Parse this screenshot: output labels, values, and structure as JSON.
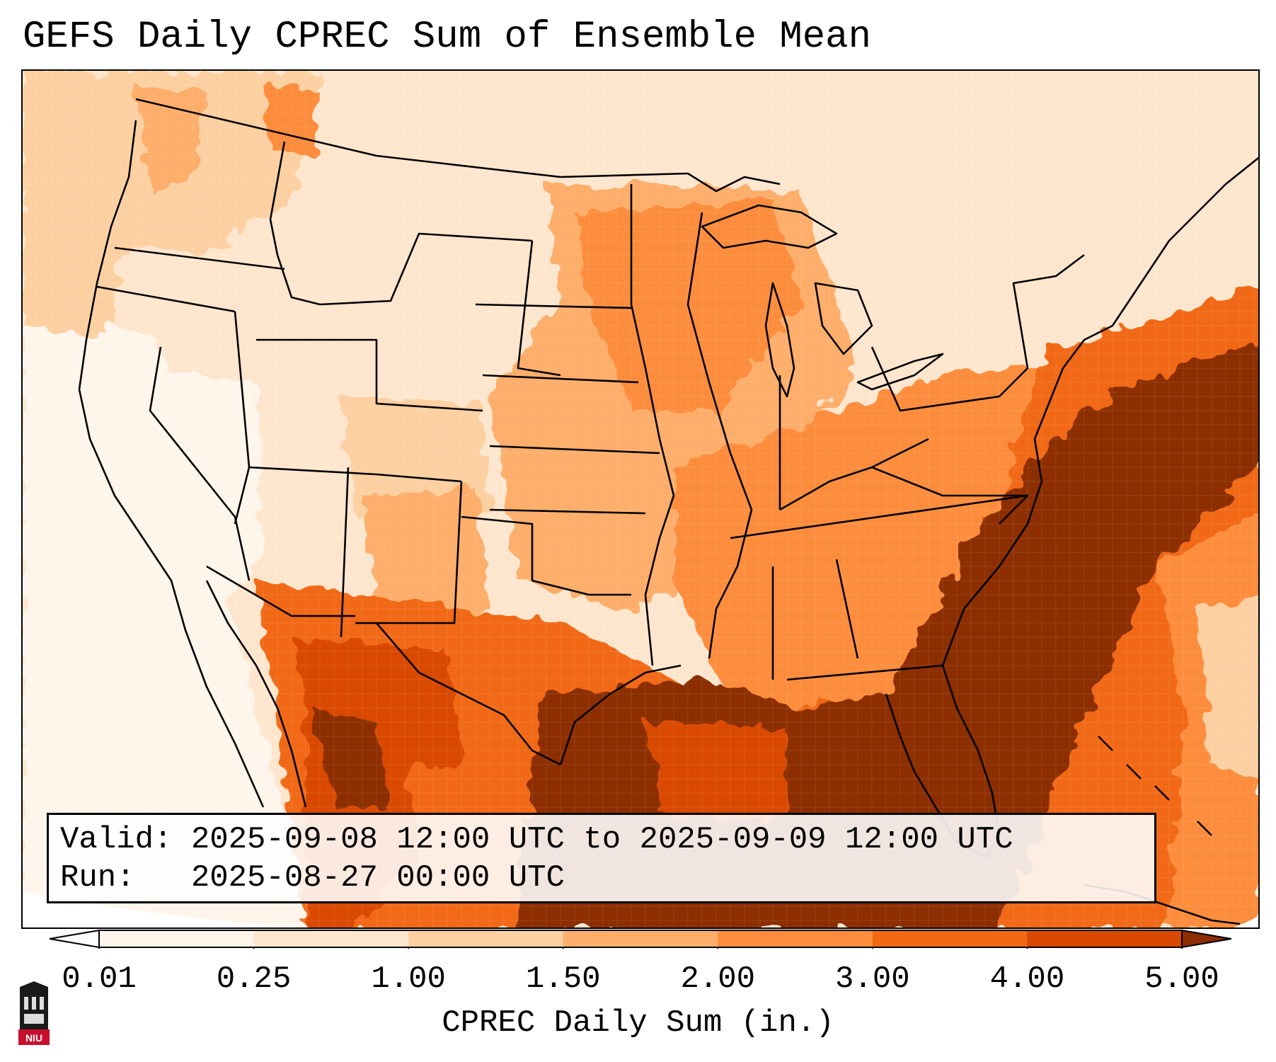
{
  "title": "GEFS Daily CPREC Sum of Ensemble Mean",
  "info": {
    "valid_label": "Valid:",
    "valid_value": "2025-09-08 12:00 UTC to 2025-09-09 12:00 UTC",
    "run_label": "Run:",
    "run_value": "2025-08-27 00:00 UTC"
  },
  "colorbar": {
    "title": "CPREC Daily Sum (in.)",
    "ticks": [
      "0.01",
      "0.25",
      "1.00",
      "1.50",
      "2.00",
      "3.00",
      "4.00",
      "5.00"
    ],
    "colors": [
      "#fff5eb",
      "#fee6ce",
      "#fdd0a2",
      "#fdae6b",
      "#fd8d3c",
      "#f16913",
      "#d94801",
      "#8c2d04"
    ],
    "under_color": "#ffffff",
    "over_color": "#8c2d04"
  },
  "logo": {
    "label": "NIU",
    "accent": "#c8102e"
  }
}
